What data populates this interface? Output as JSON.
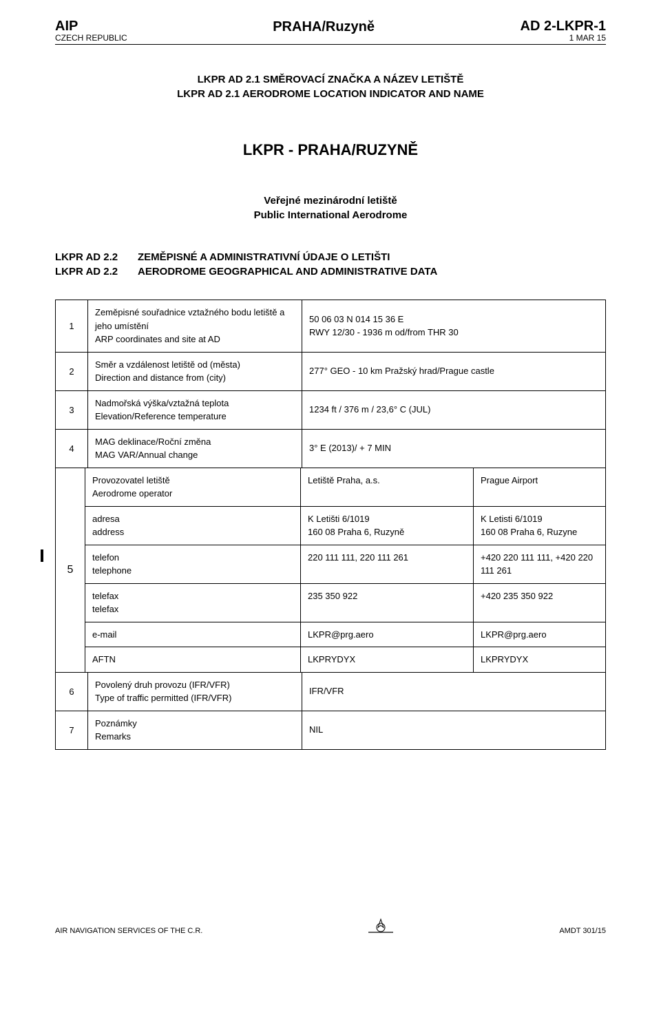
{
  "header": {
    "aip": "AIP",
    "country": "CZECH REPUBLIC",
    "title": "PRAHA/Ruzyně",
    "code": "AD 2-LKPR-1",
    "date": "1 MAR 15"
  },
  "section21": {
    "line1": "LKPR  AD 2.1  SMĚROVACÍ ZNAČKA A NÁZEV LETIŠTĚ",
    "line2": "LKPR  AD 2.1  AERODROME LOCATION INDICATOR AND NAME"
  },
  "bigTitle": "LKPR  - PRAHA/RUZYNĚ",
  "subCenter": {
    "line1": "Veřejné mezinárodní letiště",
    "line2": "Public International Aerodrome"
  },
  "section22": {
    "lab1": "LKPR  AD  2.2",
    "txt1": "ZEMĚPISNÉ A ADMINISTRATIVNÍ ÚDAJE O LETIŠTI",
    "lab2": "LKPR  AD  2.2",
    "txt2": "AERODROME GEOGRAPHICAL AND ADMINISTRATIVE DATA"
  },
  "rows14": [
    {
      "n": "1",
      "desc": "Zeměpisné souřadnice vztažného bodu letiště a jeho umístění\nARP coordinates and site at AD",
      "val": "50 06 03 N  014 15 36 E\nRWY 12/30 - 1936 m  od/from THR 30"
    },
    {
      "n": "2",
      "desc": "Směr a vzdálenost  letiště od (města)\nDirection and distance from (city)",
      "val": "277° GEO - 10 km   Pražský hrad/Prague castle"
    },
    {
      "n": "3",
      "desc": "Nadmořská výška/vztažná teplota\nElevation/Reference temperature",
      "val": "1234 ft / 376 m / 23,6° C  (JUL)"
    },
    {
      "n": "4",
      "desc": "MAG deklinace/Roční změna\nMAG VAR/Annual change",
      "val": "3° E (2013)/ + 7 MIN"
    }
  ],
  "row5": {
    "n": "5",
    "items": [
      {
        "c1": "Provozovatel letiště\nAerodrome operator",
        "c2": "Letiště Praha, a.s.",
        "c3": "Prague Airport"
      },
      {
        "c1": "adresa\naddress",
        "c2": "K Letišti 6/1019\n160 08 Praha 6, Ruzyně",
        "c3": "K Letisti 6/1019\n160 08 Praha 6, Ruzyne"
      },
      {
        "c1": "telefon\ntelephone",
        "c2": "220 111 111, 220 111 261",
        "c3": "+420 220 111 111, +420 220 111 261"
      },
      {
        "c1": "telefax\ntelefax",
        "c2": "235 350 922",
        "c3": "+420 235 350 922"
      },
      {
        "c1": "e-mail",
        "c2": "LKPR@prg.aero",
        "c3": "LKPR@prg.aero"
      },
      {
        "c1": "AFTN",
        "c2": "LKPRYDYX",
        "c3": "LKPRYDYX"
      }
    ]
  },
  "rows67": [
    {
      "n": "6",
      "desc": "Povolený druh provozu (IFR/VFR)\nType of traffic permitted (IFR/VFR)",
      "val": "IFR/VFR"
    },
    {
      "n": "7",
      "desc": "Poznámky\nRemarks",
      "val": "NIL"
    }
  ],
  "footer": {
    "left": "AIR NAVIGATION SERVICES OF THE C.R.",
    "right": "AMDT 301/15"
  }
}
